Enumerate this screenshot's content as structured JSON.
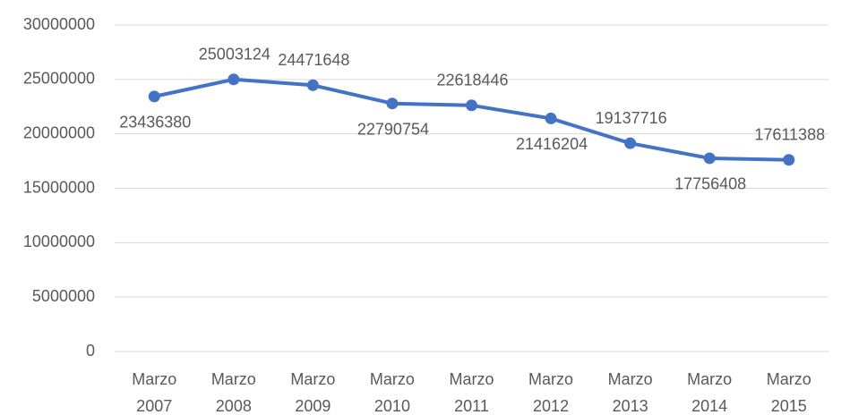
{
  "chart_data": {
    "type": "line",
    "categories": [
      "Marzo 2007",
      "Marzo 2008",
      "Marzo 2009",
      "Marzo 2010",
      "Marzo 2011",
      "Marzo 2012",
      "Marzo 2013",
      "Marzo 2014",
      "Marzo 2015"
    ],
    "series": [
      {
        "name": "Series1",
        "color": "#4472c4",
        "values": [
          23436380,
          25003124,
          24471648,
          22790754,
          22618446,
          21416204,
          19137716,
          17756408,
          17611388
        ]
      }
    ],
    "ylim": [
      0,
      30000000
    ],
    "yticks": [
      0,
      5000000,
      10000000,
      15000000,
      20000000,
      25000000,
      30000000
    ],
    "grid": true
  }
}
